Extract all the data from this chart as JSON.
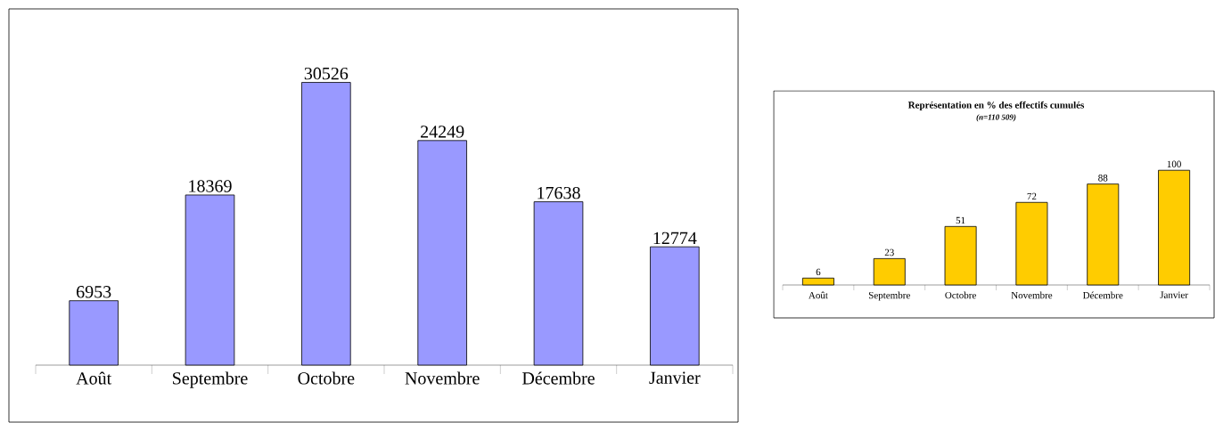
{
  "chart_data": [
    {
      "type": "bar",
      "categories": [
        "Août",
        "Septembre",
        "Octobre",
        "Novembre",
        "Décembre",
        "Janvier"
      ],
      "values": [
        6953,
        18369,
        30526,
        24249,
        17638,
        12774
      ],
      "color": "#9999ff",
      "data_labels": true
    },
    {
      "type": "bar",
      "title": "Représentation en % des effectifs cumulés",
      "subtitle": "(n=110 509)",
      "categories": [
        "Août",
        "Septembre",
        "Octobre",
        "Novembre",
        "Décembre",
        "Janvier"
      ],
      "values": [
        6,
        23,
        51,
        72,
        88,
        100
      ],
      "color": "#ffcc00",
      "data_labels": true
    }
  ]
}
